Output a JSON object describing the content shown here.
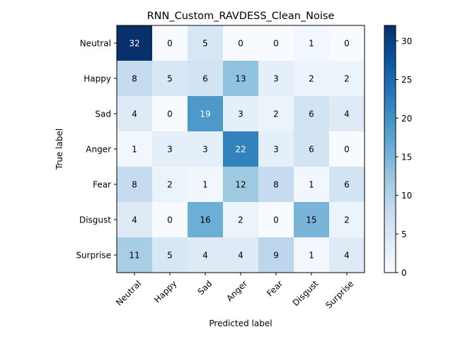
{
  "chart_data": {
    "type": "heatmap",
    "title": "RNN_Custom_RAVDESS_Clean_Noise",
    "xlabel": "Predicted label",
    "ylabel": "True label",
    "x_categories": [
      "Neutral",
      "Happy",
      "Sad",
      "Anger",
      "Fear",
      "Disgust",
      "Surprise"
    ],
    "y_categories": [
      "Neutral",
      "Happy",
      "Sad",
      "Anger",
      "Fear",
      "Disgust",
      "Surprise"
    ],
    "matrix": [
      [
        32,
        0,
        5,
        0,
        0,
        1,
        0
      ],
      [
        8,
        5,
        6,
        13,
        3,
        2,
        2
      ],
      [
        4,
        0,
        19,
        3,
        2,
        6,
        4
      ],
      [
        1,
        3,
        3,
        22,
        3,
        6,
        0
      ],
      [
        8,
        2,
        1,
        12,
        8,
        1,
        6
      ],
      [
        4,
        0,
        16,
        2,
        0,
        15,
        2
      ],
      [
        11,
        5,
        4,
        4,
        9,
        1,
        4
      ]
    ],
    "vmin": 0,
    "vmax": 32,
    "colormap": "Blues",
    "colorbar_ticks": [
      0,
      5,
      10,
      15,
      20,
      25,
      30
    ],
    "text_color_light": "#ffffff",
    "text_color_dark": "#000000"
  }
}
